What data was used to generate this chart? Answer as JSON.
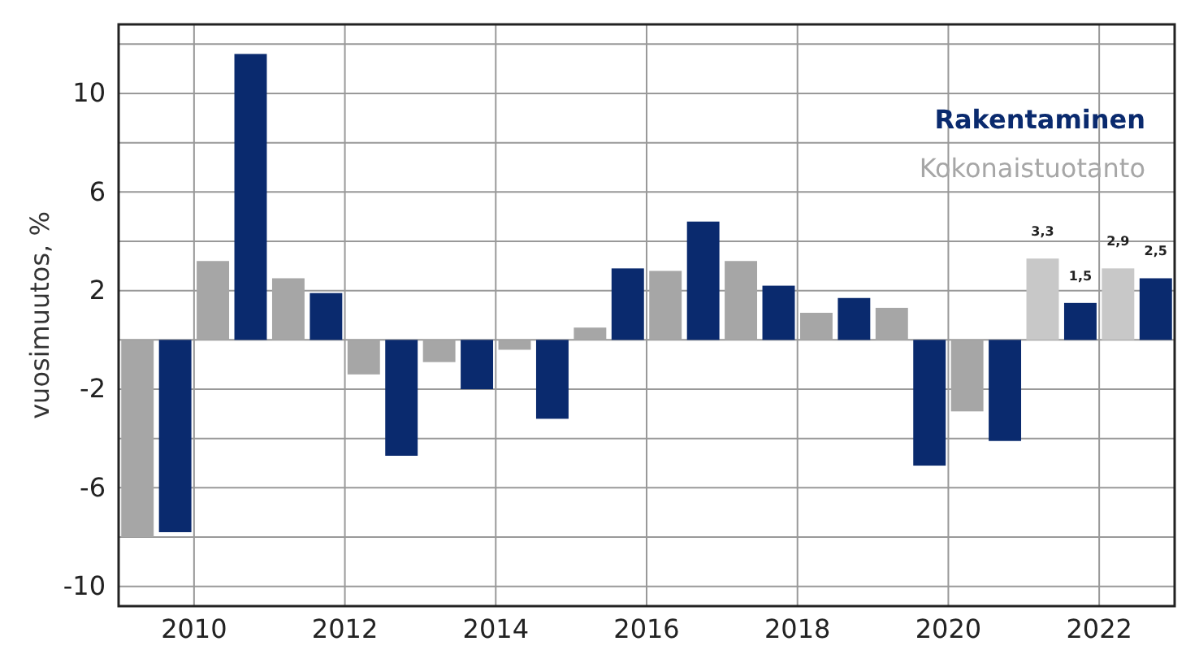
{
  "chart_data": {
    "type": "bar",
    "ylabel": "vuosimuutos, %",
    "xlim": [
      2009,
      2023
    ],
    "xticks": [
      2010,
      2012,
      2014,
      2016,
      2018,
      2020,
      2022
    ],
    "ylim": [
      -10.8,
      12.8
    ],
    "yticks": [
      -10,
      {
        "value": -8,
        "label": null
      },
      -6,
      {
        "value": -4,
        "label": null
      },
      -2,
      {
        "value": 0,
        "label": null
      },
      2,
      {
        "value": 4,
        "label": null
      },
      6,
      {
        "value": 8,
        "label": null
      },
      10,
      {
        "value": 12,
        "label": null
      }
    ],
    "grid": true,
    "legend": "top right",
    "series": [
      {
        "name": "Rakentaminen",
        "color": "#0a2a6e",
        "x": [
          2009.75,
          2010.75,
          2011.75,
          2012.75,
          2013.75,
          2014.75,
          2015.75,
          2016.75,
          2017.75,
          2018.75,
          2019.75,
          2020.75,
          2021.75,
          2022.75
        ],
        "values": [
          -7.8,
          11.6,
          1.9,
          -4.7,
          -2.0,
          -3.2,
          2.9,
          4.8,
          2.2,
          1.7,
          -5.1,
          -4.1,
          1.5,
          2.5
        ],
        "value_labels": [
          null,
          null,
          null,
          null,
          null,
          null,
          null,
          null,
          null,
          null,
          null,
          null,
          "1,5",
          "2,5"
        ]
      },
      {
        "name": "Kokonaistuotanto",
        "color": "#a6a6a6",
        "colors": [
          "#a6a6a6",
          "#a6a6a6",
          "#a6a6a6",
          "#a6a6a6",
          "#a6a6a6",
          "#a6a6a6",
          "#a6a6a6",
          "#a6a6a6",
          "#a6a6a6",
          "#a6a6a6",
          "#a6a6a6",
          "#a6a6a6",
          "#c8c8c8",
          "#c8c8c8"
        ],
        "x": [
          2009.25,
          2010.25,
          2011.25,
          2012.25,
          2013.25,
          2014.25,
          2015.25,
          2016.25,
          2017.25,
          2018.25,
          2019.25,
          2020.25,
          2021.25,
          2022.25
        ],
        "values": [
          -8.0,
          3.2,
          2.5,
          -1.4,
          -0.9,
          -0.4,
          0.5,
          2.8,
          3.2,
          1.1,
          1.3,
          -2.9,
          3.3,
          2.9
        ],
        "value_labels": [
          null,
          null,
          null,
          null,
          null,
          null,
          null,
          null,
          null,
          null,
          null,
          null,
          "3,3",
          "2,9"
        ]
      }
    ]
  }
}
